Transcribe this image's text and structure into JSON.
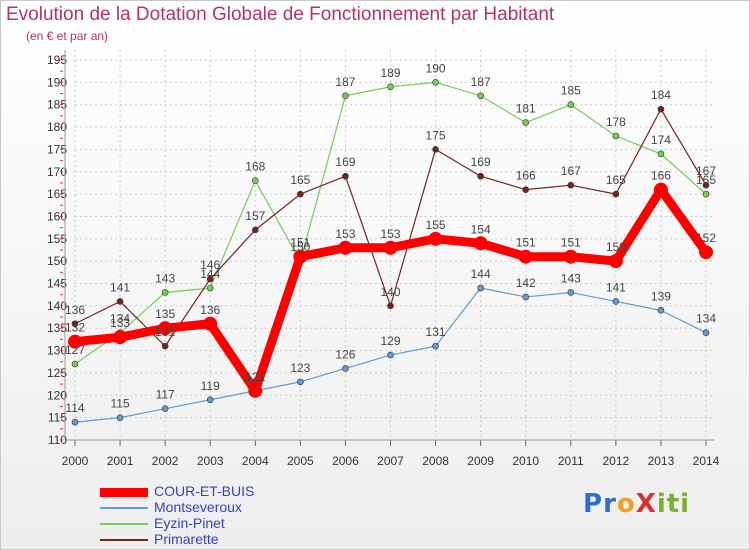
{
  "chart_data": {
    "type": "line",
    "title": "Evolution de la Dotation Globale de Fonctionnement par Habitant",
    "subtitle": "(en € et par an)",
    "categories": [
      "2000",
      "2001",
      "2002",
      "2003",
      "2004",
      "2005",
      "2006",
      "2007",
      "2008",
      "2009",
      "2010",
      "2011",
      "2012",
      "2013",
      "2014"
    ],
    "ylim": [
      110,
      195
    ],
    "yticks": [
      110,
      115,
      120,
      125,
      130,
      135,
      140,
      145,
      150,
      155,
      160,
      165,
      170,
      175,
      180,
      185,
      190,
      195
    ],
    "grid": true,
    "legend_position": "bottom-left",
    "series": [
      {
        "name": "COUR-ET-BUIS",
        "color": "#ff0000",
        "values": [
          132,
          133,
          135,
          136,
          121,
          151,
          153,
          153,
          155,
          154,
          151,
          151,
          150,
          166,
          152
        ]
      },
      {
        "name": "Montseveroux",
        "color": "#6699cc",
        "values": [
          114,
          115,
          117,
          119,
          121,
          123,
          126,
          129,
          131,
          144,
          142,
          143,
          141,
          139,
          134
        ]
      },
      {
        "name": "Eyzin-Pinet",
        "color": "#77cc55",
        "values": [
          127,
          134,
          143,
          144,
          168,
          150,
          187,
          189,
          190,
          187,
          181,
          185,
          178,
          174,
          165
        ]
      },
      {
        "name": "Primarette",
        "color": "#772222",
        "values": [
          136,
          141,
          131,
          146,
          157,
          165,
          169,
          140,
          175,
          169,
          166,
          167,
          165,
          184,
          167
        ]
      }
    ]
  },
  "logo": {
    "text": "ProXiti",
    "letters": [
      "P",
      "r",
      "o",
      "X",
      "i",
      "t",
      "i"
    ],
    "colors": [
      "#2f6fc9",
      "#2f6fc9",
      "#f0a020",
      "#d93030",
      "#7ab030",
      "#7ab030",
      "#7ab030"
    ]
  }
}
